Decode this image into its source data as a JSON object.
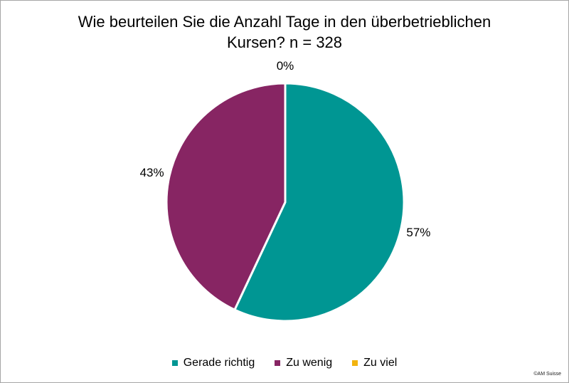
{
  "chart_data": {
    "type": "pie",
    "title": "Wie beurteilen Sie die Anzahl Tage in den überbetrieblichen Kursen? n = 328",
    "unit": "%",
    "start_angle": 0,
    "direction": "clockwise",
    "legend_position": "bottom",
    "background": "#ffffff",
    "series": [
      {
        "name": "Gerade richtig",
        "value": 57,
        "color": "#009693"
      },
      {
        "name": "Zu wenig",
        "value": 43,
        "color": "#872563"
      },
      {
        "name": "Zu viel",
        "value": 0,
        "color": "#F2B410"
      }
    ]
  },
  "footer": {
    "copyright": "©AM Suisse"
  }
}
